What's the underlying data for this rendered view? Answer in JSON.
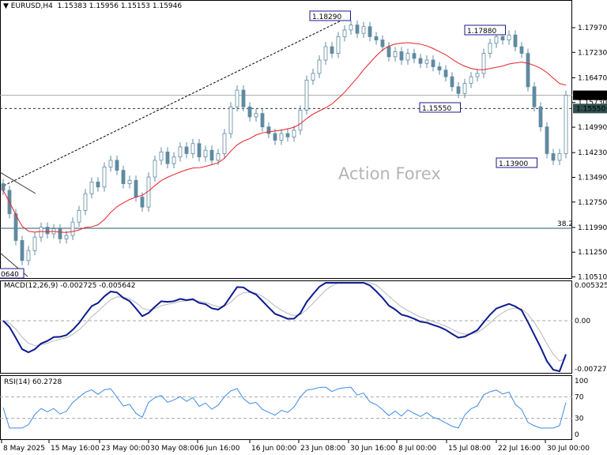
{
  "header": {
    "symbol": "EURUSD,H4",
    "ohlc": "1.15383 1.15956 1.15153 1.15946"
  },
  "watermark": "Action Forex",
  "price_axis": [
    "1.17970",
    "1.17230",
    "1.16470",
    "1.15730",
    "1.14990",
    "1.14230",
    "1.13490",
    "1.12750",
    "1.11990",
    "1.11250",
    "1.10510"
  ],
  "current_price": "1.15946",
  "level_price": "1.15550",
  "annotations": {
    "high1": "1.18290",
    "high2": "1.17880",
    "low1": "1.15550",
    "low2": "1.13900",
    "low0": "0640",
    "fib": "38.2"
  },
  "macd": {
    "label": "MACD(12,26,9) -0.002725 -0.005642",
    "top": "0.005325",
    "zero": "0.00",
    "bottom": "-0.007273"
  },
  "rsi": {
    "label": "RSI(14) 60.2728",
    "ticks": [
      "100",
      "70",
      "30",
      "0"
    ]
  },
  "time_axis": [
    "8 May 2025",
    "15 May 16:00",
    "23 May 00:00",
    "30 May 08:00",
    "6 Jun 16:00",
    "16 Jun 00:00",
    "23 Jun 08:00",
    "30 Jun 16:00",
    "8 Jul 00:00",
    "15 Jul 08:00",
    "22 Jul 16:00",
    "30 Jul 00:00"
  ],
  "colors": {
    "candle": "#5f8aa0",
    "ma": "#e8212a",
    "macd": "#0b1b8f",
    "signal": "#b8b8b8",
    "rsi": "#3d8be6"
  },
  "chart_data": {
    "type": "candlestick",
    "closes": [
      1.131,
      1.124,
      1.116,
      1.11,
      1.113,
      1.117,
      1.12,
      1.118,
      1.1195,
      1.1165,
      1.1175,
      1.1215,
      1.125,
      1.13,
      1.1335,
      1.132,
      1.138,
      1.14,
      1.137,
      1.133,
      1.134,
      1.129,
      1.126,
      1.135,
      1.14,
      1.1425,
      1.139,
      1.141,
      1.144,
      1.142,
      1.145,
      1.141,
      1.143,
      1.14,
      1.142,
      1.148,
      1.156,
      1.161,
      1.156,
      1.153,
      1.154,
      1.15,
      1.148,
      1.146,
      1.148,
      1.147,
      1.149,
      1.155,
      1.164,
      1.166,
      1.17,
      1.174,
      1.172,
      1.177,
      1.179,
      1.1805,
      1.178,
      1.18,
      1.177,
      1.176,
      1.174,
      1.171,
      1.1725,
      1.17,
      1.172,
      1.1705,
      1.169,
      1.17,
      1.168,
      1.167,
      1.165,
      1.162,
      1.16,
      1.163,
      1.165,
      1.166,
      1.172,
      1.175,
      1.177,
      1.176,
      1.1775,
      1.174,
      1.172,
      1.162,
      1.156,
      1.15,
      1.142,
      1.14,
      1.142,
      1.15946
    ],
    "ylim": [
      1.103,
      1.187
    ]
  }
}
